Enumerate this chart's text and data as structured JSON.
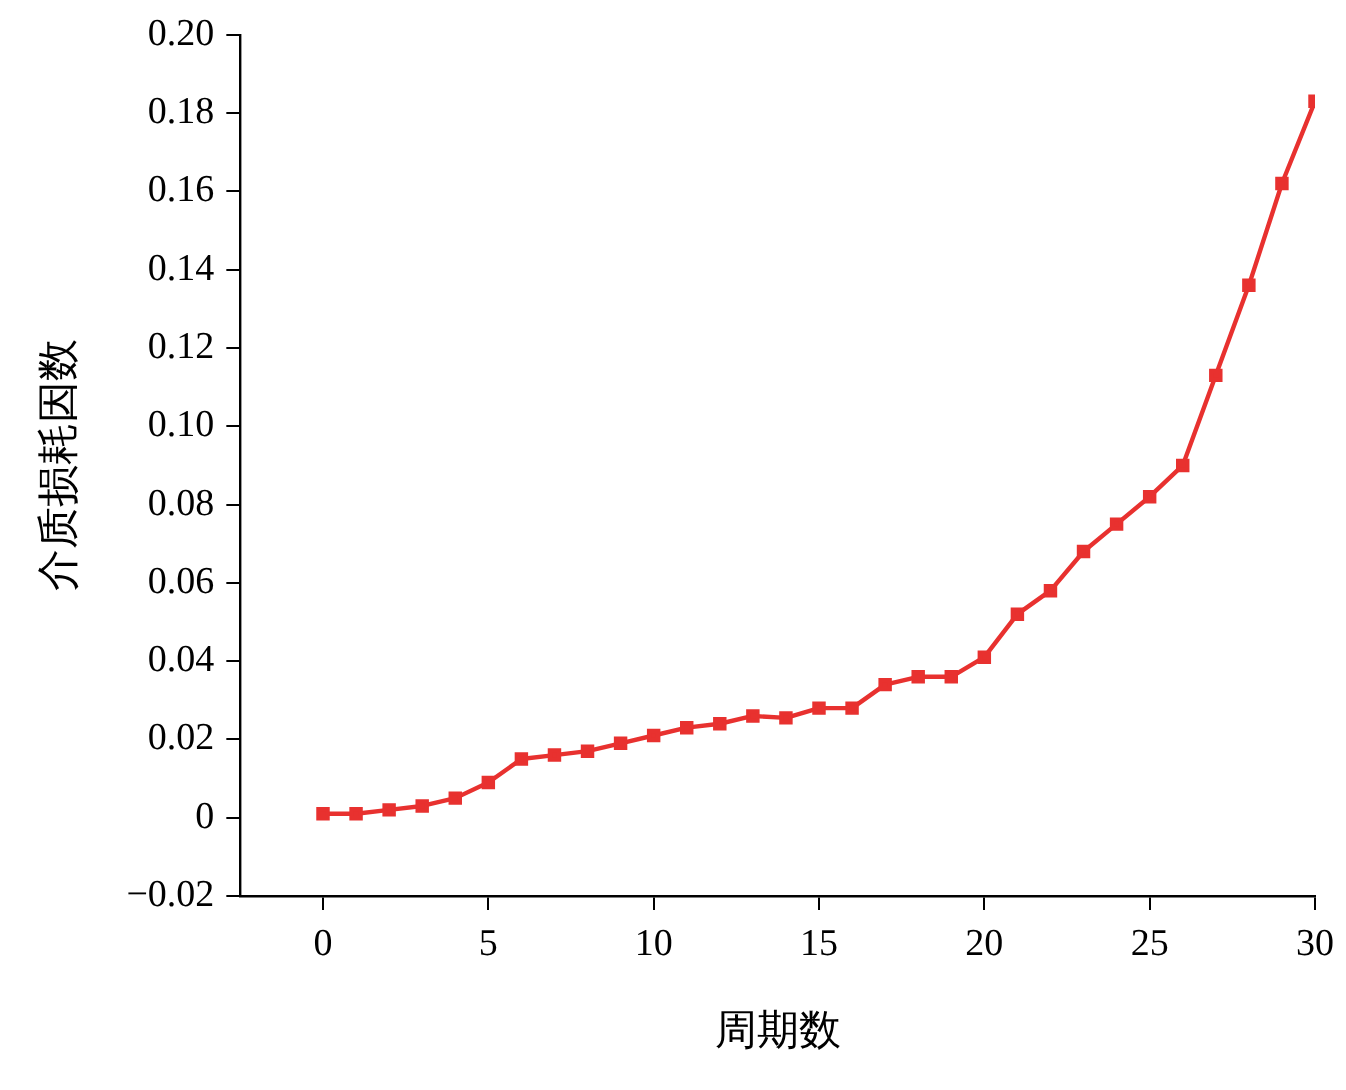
{
  "chart_data": {
    "type": "line",
    "xlabel": "周期数",
    "ylabel": "介质损耗因数",
    "x": [
      0,
      1,
      2,
      3,
      4,
      5,
      6,
      7,
      8,
      9,
      10,
      11,
      12,
      13,
      14,
      15,
      16,
      17,
      18,
      19,
      20,
      21,
      22,
      23,
      24,
      25,
      26,
      27,
      28,
      29,
      30
    ],
    "series": [
      {
        "color": "#e8312f",
        "values": [
          0.001,
          0.001,
          0.002,
          0.003,
          0.005,
          0.009,
          0.015,
          0.016,
          0.017,
          0.019,
          0.021,
          0.023,
          0.024,
          0.026,
          0.0255,
          0.028,
          0.028,
          0.034,
          0.036,
          0.036,
          0.041,
          0.052,
          0.058,
          0.068,
          0.075,
          0.082,
          0.09,
          0.113,
          0.136,
          0.162,
          0.183
        ]
      }
    ],
    "xlim": [
      -2.5,
      30
    ],
    "xticks": [
      0,
      5,
      10,
      15,
      20,
      25,
      30
    ],
    "ylim": [
      -0.02,
      0.2
    ],
    "yticks": [
      {
        "value": -0.02,
        "label": "−0.02"
      },
      0,
      {
        "value": 0.02,
        "label": "0.02"
      },
      {
        "value": 0.04,
        "label": "0.04"
      },
      {
        "value": 0.06,
        "label": "0.06"
      },
      {
        "value": 0.08,
        "label": "0.08"
      },
      {
        "value": 0.1,
        "label": "0.10"
      },
      {
        "value": 0.12,
        "label": "0.12"
      },
      {
        "value": 0.14,
        "label": "0.14"
      },
      {
        "value": 0.16,
        "label": "0.16"
      },
      {
        "value": 0.18,
        "label": "0.18"
      },
      {
        "value": 0.2,
        "label": "0.20"
      }
    ],
    "grid": false,
    "marker": "square",
    "line_style": "solid"
  }
}
